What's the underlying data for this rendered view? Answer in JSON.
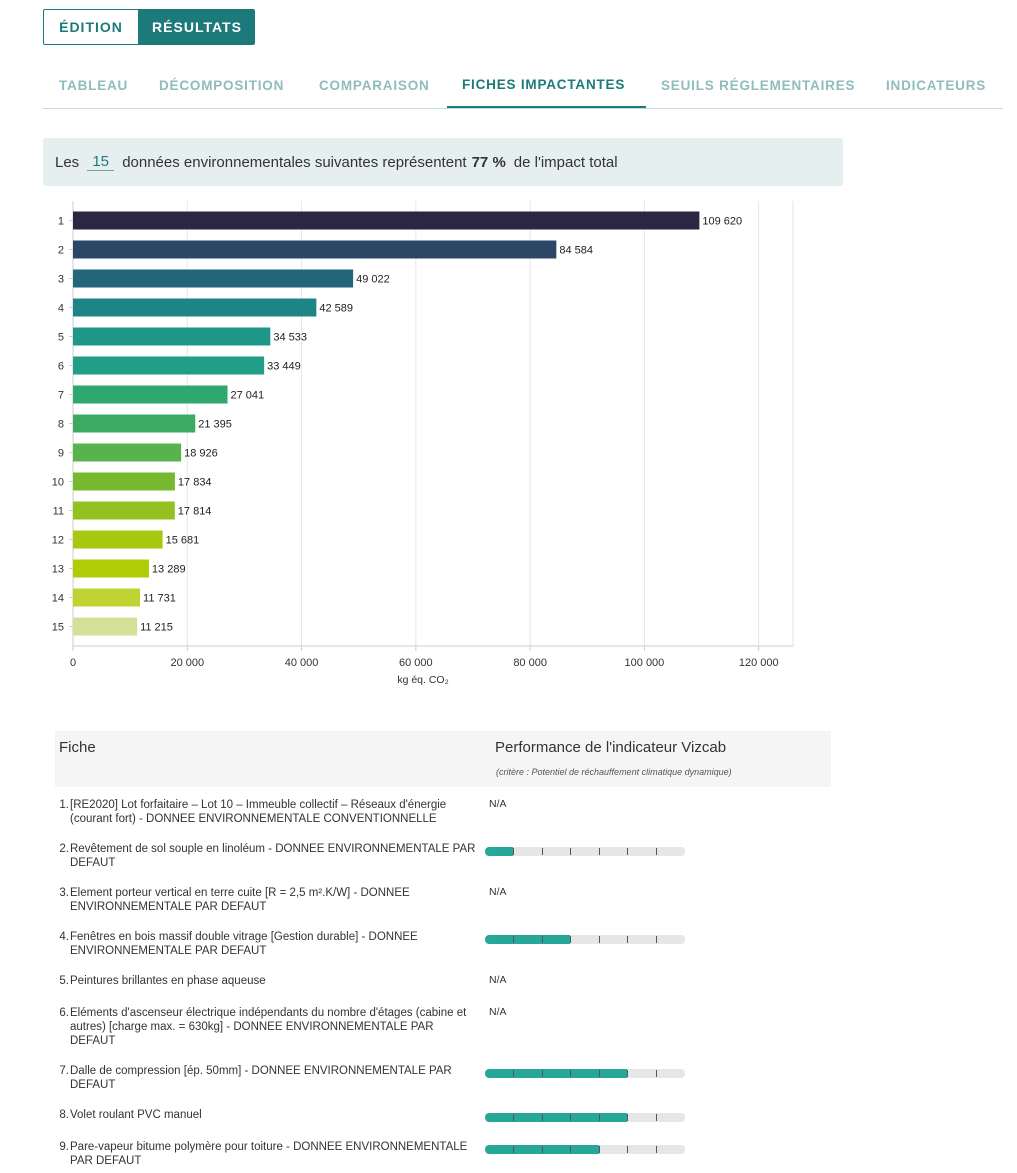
{
  "mode": {
    "edition_label": "ÉDITION",
    "resultats_label": "RÉSULTATS"
  },
  "tabs": [
    {
      "label": "TABLEAU",
      "active": false
    },
    {
      "label": "DÉCOMPOSITION",
      "active": false
    },
    {
      "label": "COMPARAISON",
      "active": false
    },
    {
      "label": "FICHES IMPACTANTES",
      "active": true
    },
    {
      "label": "SEUILS RÉGLEMENTAIRES",
      "active": false
    },
    {
      "label": "INDICATEURS",
      "active": false
    }
  ],
  "summary": {
    "prefix": "Les",
    "count": "15",
    "middle": "données environnementales suivantes représentent",
    "percent": "77 %",
    "suffix": "de l'impact total"
  },
  "chart_data": {
    "type": "bar",
    "orientation": "horizontal",
    "categories": [
      "1",
      "2",
      "3",
      "4",
      "5",
      "6",
      "7",
      "8",
      "9",
      "10",
      "11",
      "12",
      "13",
      "14",
      "15"
    ],
    "values": [
      109620,
      84584,
      49022,
      42589,
      34533,
      33449,
      27041,
      21395,
      18926,
      17834,
      17814,
      15681,
      13289,
      11731,
      11215
    ],
    "value_labels": [
      "109 620",
      "84 584",
      "49 022",
      "42 589",
      "34 533",
      "33 449",
      "27 041",
      "21 395",
      "18 926",
      "17 834",
      "17 814",
      "15 681",
      "13 289",
      "11 731",
      "11 215"
    ],
    "colors": [
      "#2b2641",
      "#2c4766",
      "#23667a",
      "#1d8585",
      "#1f9889",
      "#239e86",
      "#2ea770",
      "#3caa60",
      "#57b44d",
      "#76b92f",
      "#93c11f",
      "#a6c80e",
      "#b0cc07",
      "#bfd431",
      "#d2e098"
    ],
    "xlim": [
      0,
      126000
    ],
    "xticks": [
      0,
      20000,
      40000,
      60000,
      80000,
      100000,
      120000
    ],
    "xtick_labels": [
      "0",
      "20 000",
      "40 000",
      "60 000",
      "80 000",
      "100 000",
      "120 000"
    ],
    "xlabel": "kg éq. CO₂",
    "grid": true
  },
  "table": {
    "header_fiche": "Fiche",
    "header_perf": "Performance de l'indicateur Vizcab",
    "header_sub": "(critère : Potentiel de réchauffement climatique dynamique)",
    "rows": [
      {
        "num": "1.",
        "text": "[RE2020] Lot forfaitaire – Lot 10 – Immeuble collectif – Réseaux d'énergie (courant fort) - DONNEE ENVIRONNEMENTALE CONVENTIONNELLE",
        "perf": null,
        "na": "N/A"
      },
      {
        "num": "2.",
        "text": "Revêtement de sol souple en linoléum - DONNEE ENVIRONNEMENTALE PAR DEFAUT",
        "perf": 1,
        "na": ""
      },
      {
        "num": "3.",
        "text": "Element porteur vertical en terre cuite [R = 2,5 m².K/W] - DONNEE ENVIRONNEMENTALE PAR DEFAUT",
        "perf": null,
        "na": "N/A"
      },
      {
        "num": "4.",
        "text": "Fenêtres en bois massif double vitrage [Gestion durable] - DONNEE ENVIRONNEMENTALE PAR DEFAUT",
        "perf": 3,
        "na": ""
      },
      {
        "num": "5.",
        "text": "Peintures brillantes en phase aqueuse",
        "perf": null,
        "na": "N/A"
      },
      {
        "num": "6.",
        "text": "Eléments d'ascenseur électrique indépendants du nombre d'étages (cabine et autres) [charge max. = 630kg] - DONNEE ENVIRONNEMENTALE PAR DEFAUT",
        "perf": null,
        "na": "N/A"
      },
      {
        "num": "7.",
        "text": "Dalle de compression [ép. 50mm] - DONNEE ENVIRONNEMENTALE PAR DEFAUT",
        "perf": 5,
        "na": ""
      },
      {
        "num": "8.",
        "text": "Volet roulant PVC manuel",
        "perf": 5,
        "na": ""
      },
      {
        "num": "9.",
        "text": "Pare-vapeur bitume polymère pour toiture - DONNEE ENVIRONNEMENTALE PAR DEFAUT",
        "perf": 4,
        "na": ""
      }
    ]
  }
}
